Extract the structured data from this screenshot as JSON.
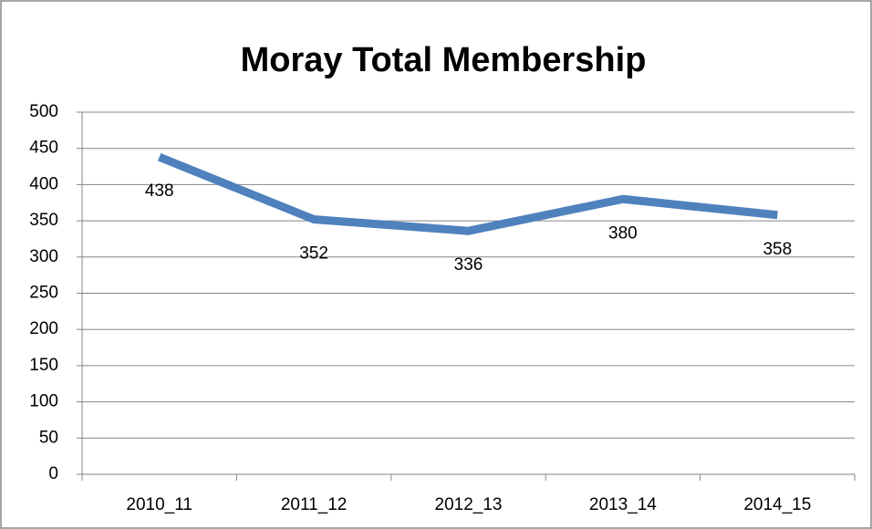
{
  "chart_data": {
    "type": "line",
    "title": "Moray Total Membership",
    "categories": [
      "2010_11",
      "2011_12",
      "2012_13",
      "2013_14",
      "2014_15"
    ],
    "series": [
      {
        "name": "Moray Total Membership",
        "color": "#4f81bd",
        "values": [
          438,
          352,
          336,
          380,
          358
        ]
      }
    ],
    "ylim": [
      0,
      500
    ],
    "yticks": [
      0,
      50,
      100,
      150,
      200,
      250,
      300,
      350,
      400,
      450,
      500
    ],
    "grid": true,
    "legend": false,
    "data_labels": "below"
  }
}
